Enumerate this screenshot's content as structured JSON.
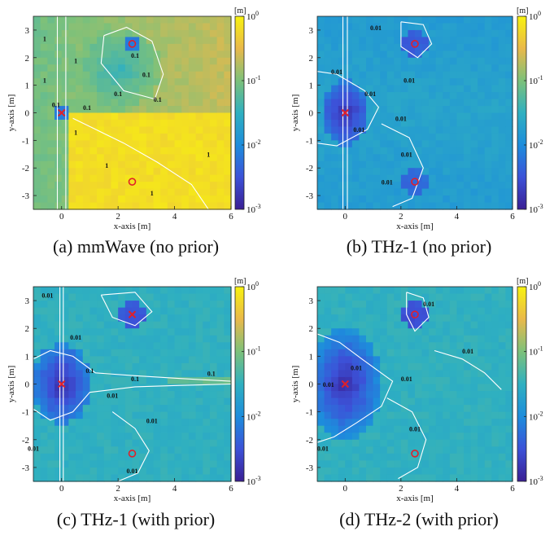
{
  "chart_data": [
    {
      "type": "heatmap",
      "caption": "(a) mmWave (no prior)",
      "xlabel": "x-axis [m]",
      "ylabel": "y-axis [m]",
      "xlim": [
        -1,
        6
      ],
      "ylim": [
        -3.5,
        3.5
      ],
      "xticks": [
        "0",
        "2",
        "4",
        "6"
      ],
      "yticks": [
        "3",
        "2",
        "1",
        "0",
        "-1",
        "-2",
        "-3"
      ],
      "colorbar": {
        "unit": "[m]",
        "scale": "log",
        "range": [
          0.001,
          1
        ],
        "ticks": [
          "10^0",
          "10^-1",
          "10^-2",
          "10^-3"
        ]
      },
      "contour_labels": [
        "1",
        "1",
        "1",
        "1",
        "0.1",
        "0.1",
        "0.1",
        "0.1",
        "0.1",
        "0.1",
        "1",
        "1",
        "1"
      ],
      "markers": [
        {
          "x": 0,
          "y": 0,
          "symbol": "x"
        },
        {
          "x": 2.5,
          "y": 2.5,
          "symbol": "circle"
        },
        {
          "x": 2.5,
          "y": -2.5,
          "symbol": "circle"
        }
      ]
    },
    {
      "type": "heatmap",
      "caption": "(b) THz-1 (no prior)",
      "xlabel": "x-axis [m]",
      "ylabel": "y-axis [m]",
      "xlim": [
        -1,
        6
      ],
      "ylim": [
        -3.5,
        3.5
      ],
      "xticks": [
        "0",
        "2",
        "4",
        "6"
      ],
      "yticks": [
        "3",
        "2",
        "1",
        "0",
        "-1",
        "-2",
        "-3"
      ],
      "colorbar": {
        "unit": "[m]",
        "scale": "log",
        "range": [
          0.001,
          1
        ],
        "ticks": [
          "10^0",
          "10^-1",
          "10^-2",
          "10^-3"
        ]
      },
      "contour_labels": [
        "0.01",
        "0.01",
        "0.01",
        "0.01",
        "0.01",
        "0.01",
        "0.01",
        "0.01"
      ],
      "markers": [
        {
          "x": 0,
          "y": 0,
          "symbol": "x"
        },
        {
          "x": 2.5,
          "y": 2.5,
          "symbol": "circle"
        },
        {
          "x": 2.5,
          "y": -2.5,
          "symbol": "circle"
        }
      ]
    },
    {
      "type": "heatmap",
      "caption": "(c) THz-1 (with prior)",
      "xlabel": "x-axis [m]",
      "ylabel": "y-axis [m]",
      "xlim": [
        -1,
        6
      ],
      "ylim": [
        -3.5,
        3.5
      ],
      "xticks": [
        "0",
        "2",
        "4",
        "6"
      ],
      "yticks": [
        "3",
        "2",
        "1",
        "0",
        "-1",
        "-2",
        "-3"
      ],
      "colorbar": {
        "unit": "[m]",
        "scale": "log",
        "range": [
          0.001,
          1
        ],
        "ticks": [
          "10^0",
          "10^-1",
          "10^-2",
          "10^-3"
        ]
      },
      "contour_labels": [
        "0.01",
        "0.01",
        "0.1",
        "0.1",
        "0.01",
        "0.1",
        "0.01",
        "0.01",
        "0.01"
      ],
      "markers": [
        {
          "x": 0,
          "y": 0,
          "symbol": "x"
        },
        {
          "x": 2.5,
          "y": 2.5,
          "symbol": "x"
        },
        {
          "x": 2.5,
          "y": -2.5,
          "symbol": "circle"
        }
      ]
    },
    {
      "type": "heatmap",
      "caption": "(d) THz-2 (with prior)",
      "xlabel": "x-axis [m]",
      "ylabel": "y-axis [m]",
      "xlim": [
        -1,
        6
      ],
      "ylim": [
        -3.5,
        3.5
      ],
      "xticks": [
        "0",
        "2",
        "4",
        "6"
      ],
      "yticks": [
        "3",
        "2",
        "1",
        "0",
        "-1",
        "-2",
        "-3"
      ],
      "colorbar": {
        "unit": "[m]",
        "scale": "log",
        "range": [
          0.001,
          1
        ],
        "ticks": [
          "10^0",
          "10^-1",
          "10^-2",
          "10^-3"
        ]
      },
      "contour_labels": [
        "0.01",
        "0.01",
        "0.01",
        "0.01",
        "0.01",
        "0.01",
        "0.01"
      ],
      "markers": [
        {
          "x": 0,
          "y": 0,
          "symbol": "x"
        },
        {
          "x": 2.5,
          "y": 2.5,
          "symbol": "circle"
        },
        {
          "x": 2.5,
          "y": -2.5,
          "symbol": "circle"
        }
      ]
    }
  ],
  "colormap": [
    "#3a1f94",
    "#3c52d8",
    "#1d8ddc",
    "#2fb0c0",
    "#7dc17a",
    "#e9b94a",
    "#f8f20f"
  ]
}
